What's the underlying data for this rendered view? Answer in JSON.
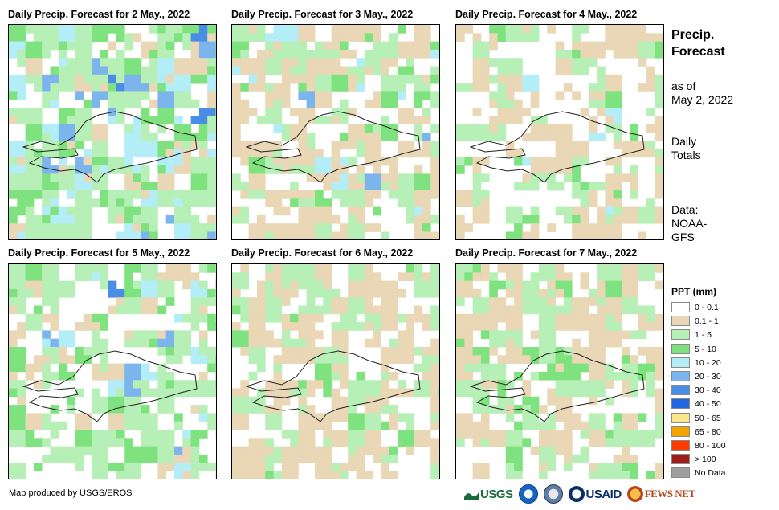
{
  "panels": [
    {
      "title": "Daily Precip. Forecast for 2 May., 2022"
    },
    {
      "title": "Daily Precip. Forecast for 3 May., 2022"
    },
    {
      "title": "Daily Precip. Forecast for 4 May., 2022"
    },
    {
      "title": "Daily Precip. Forecast for 5 May., 2022"
    },
    {
      "title": "Daily Precip. Forecast for 6 May., 2022"
    },
    {
      "title": "Daily Precip. Forecast for 7 May., 2022"
    }
  ],
  "sidebar": {
    "title_line1": "Precip.",
    "title_line2": "Forecast",
    "asof_line1": "as of",
    "asof_line2": "May 2, 2022",
    "totals_line1": "Daily",
    "totals_line2": "Totals",
    "data_line1": "Data:",
    "data_line2": "NOAA-",
    "data_line3": "GFS"
  },
  "legend": {
    "title": "PPT (mm)",
    "items": [
      {
        "label": "0 - 0.1",
        "color": "#ffffff"
      },
      {
        "label": "0.1 - 1",
        "color": "#e9d7b5"
      },
      {
        "label": "1 - 5",
        "color": "#b6f0b6"
      },
      {
        "label": "5 - 10",
        "color": "#7ee37e"
      },
      {
        "label": "10 - 20",
        "color": "#b3edf8"
      },
      {
        "label": "20 - 30",
        "color": "#7cb5ee"
      },
      {
        "label": "30 - 40",
        "color": "#4a8de6"
      },
      {
        "label": "40 - 50",
        "color": "#1f66e0"
      },
      {
        "label": "50 - 65",
        "color": "#fde68a"
      },
      {
        "label": "65 - 80",
        "color": "#f5a300"
      },
      {
        "label": "80 - 100",
        "color": "#ff3b00"
      },
      {
        "label": "> 100",
        "color": "#a01b1b"
      },
      {
        "label": "No Data",
        "color": "#9e9e9e"
      }
    ]
  },
  "footer": {
    "credit": "Map produced by USGS/EROS"
  },
  "logos": {
    "usgs": "USGS",
    "usaid": "USAID",
    "fewsnet": "FEWS NET"
  }
}
